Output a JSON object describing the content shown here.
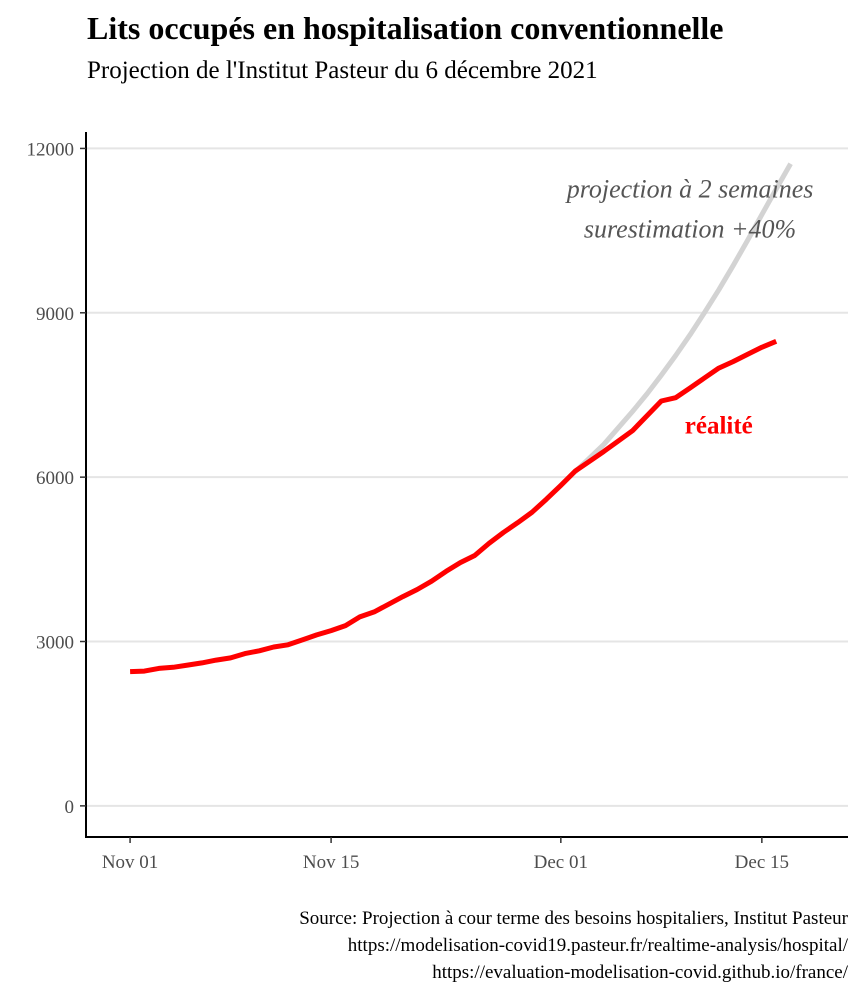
{
  "chart_data": {
    "type": "line",
    "title": "Lits occupés en hospitalisation conventionnelle",
    "subtitle": "Projection de l'Institut Pasteur du 6 décembre 2021",
    "xlabel": "",
    "ylabel": "",
    "ylim": [
      -550,
      12300
    ],
    "xlim": [
      "2021-10-29",
      "2021-12-21"
    ],
    "x_ticks": [
      {
        "date": "2021-11-01",
        "label": "Nov 01"
      },
      {
        "date": "2021-11-15",
        "label": "Nov 15"
      },
      {
        "date": "2021-12-01",
        "label": "Dec 01"
      },
      {
        "date": "2021-12-15",
        "label": "Dec 15"
      }
    ],
    "y_ticks": [
      0,
      3000,
      6000,
      9000,
      12000
    ],
    "grid": "horizontal major",
    "series": [
      {
        "color": "#d3d3d3",
        "points": [
          {
            "x": "2021-12-02",
            "y": 6100
          },
          {
            "x": "2021-12-03",
            "y": 6350
          },
          {
            "x": "2021-12-04",
            "y": 6600
          },
          {
            "x": "2021-12-05",
            "y": 6900
          },
          {
            "x": "2021-12-06",
            "y": 7200
          },
          {
            "x": "2021-12-07",
            "y": 7520
          },
          {
            "x": "2021-12-08",
            "y": 7860
          },
          {
            "x": "2021-12-09",
            "y": 8220
          },
          {
            "x": "2021-12-10",
            "y": 8600
          },
          {
            "x": "2021-12-11",
            "y": 9000
          },
          {
            "x": "2021-12-12",
            "y": 9420
          },
          {
            "x": "2021-12-13",
            "y": 9860
          },
          {
            "x": "2021-12-14",
            "y": 10320
          },
          {
            "x": "2021-12-15",
            "y": 10790
          },
          {
            "x": "2021-12-16",
            "y": 11260
          },
          {
            "x": "2021-12-17",
            "y": 11720
          }
        ]
      },
      {
        "color": "#ff0000",
        "points": [
          {
            "x": "2021-11-01",
            "y": 2450
          },
          {
            "x": "2021-11-02",
            "y": 2460
          },
          {
            "x": "2021-11-03",
            "y": 2510
          },
          {
            "x": "2021-11-04",
            "y": 2530
          },
          {
            "x": "2021-11-05",
            "y": 2570
          },
          {
            "x": "2021-11-06",
            "y": 2610
          },
          {
            "x": "2021-11-07",
            "y": 2660
          },
          {
            "x": "2021-11-08",
            "y": 2700
          },
          {
            "x": "2021-11-09",
            "y": 2780
          },
          {
            "x": "2021-11-10",
            "y": 2830
          },
          {
            "x": "2021-11-11",
            "y": 2900
          },
          {
            "x": "2021-11-12",
            "y": 2940
          },
          {
            "x": "2021-11-13",
            "y": 3030
          },
          {
            "x": "2021-11-14",
            "y": 3120
          },
          {
            "x": "2021-11-15",
            "y": 3200
          },
          {
            "x": "2021-11-16",
            "y": 3290
          },
          {
            "x": "2021-11-17",
            "y": 3450
          },
          {
            "x": "2021-11-18",
            "y": 3540
          },
          {
            "x": "2021-11-19",
            "y": 3680
          },
          {
            "x": "2021-11-20",
            "y": 3820
          },
          {
            "x": "2021-11-21",
            "y": 3950
          },
          {
            "x": "2021-11-22",
            "y": 4100
          },
          {
            "x": "2021-11-23",
            "y": 4280
          },
          {
            "x": "2021-11-24",
            "y": 4440
          },
          {
            "x": "2021-11-25",
            "y": 4570
          },
          {
            "x": "2021-11-26",
            "y": 4790
          },
          {
            "x": "2021-11-27",
            "y": 4990
          },
          {
            "x": "2021-11-28",
            "y": 5170
          },
          {
            "x": "2021-11-29",
            "y": 5360
          },
          {
            "x": "2021-11-30",
            "y": 5600
          },
          {
            "x": "2021-12-01",
            "y": 5850
          },
          {
            "x": "2021-12-02",
            "y": 6110
          },
          {
            "x": "2021-12-03",
            "y": 6290
          },
          {
            "x": "2021-12-04",
            "y": 6470
          },
          {
            "x": "2021-12-05",
            "y": 6660
          },
          {
            "x": "2021-12-06",
            "y": 6850
          },
          {
            "x": "2021-12-07",
            "y": 7120
          },
          {
            "x": "2021-12-08",
            "y": 7390
          },
          {
            "x": "2021-12-09",
            "y": 7450
          },
          {
            "x": "2021-12-10",
            "y": 7630
          },
          {
            "x": "2021-12-11",
            "y": 7810
          },
          {
            "x": "2021-12-12",
            "y": 7990
          },
          {
            "x": "2021-12-13",
            "y": 8110
          },
          {
            "x": "2021-12-14",
            "y": 8240
          },
          {
            "x": "2021-12-15",
            "y": 8370
          },
          {
            "x": "2021-12-16",
            "y": 8480
          }
        ]
      }
    ],
    "annotations": [
      {
        "lines": [
          "projection à 2 semaines",
          "surestimation +40%"
        ],
        "color": "#555555",
        "style": "italic",
        "anchor": {
          "x": "2021-12-10",
          "y": 11100
        }
      },
      {
        "lines": [
          "réalité"
        ],
        "color": "#ff0000",
        "style": "bold",
        "anchor": {
          "x": "2021-12-12",
          "y": 6800
        }
      }
    ]
  },
  "caption": {
    "lines": [
      "Source: Projection à cour terme des besoins hospitaliers, Institut Pasteur",
      "https://modelisation-covid19.pasteur.fr/realtime-analysis/hospital/",
      "https://evaluation-modelisation-covid.github.io/france/"
    ]
  }
}
